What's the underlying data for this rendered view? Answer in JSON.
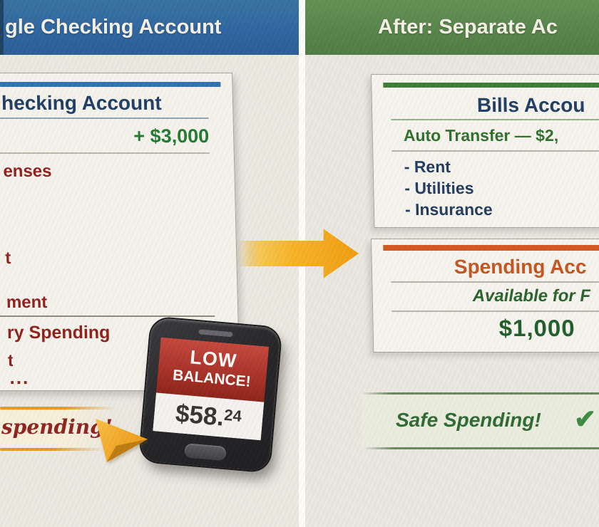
{
  "before": {
    "header": "gle Checking Account",
    "card": {
      "title": "hecking Account",
      "deposit": "+ $3,000",
      "rows": [
        "enses",
        "t",
        "ment",
        "ry Spending",
        "t",
        "..."
      ]
    },
    "banner": {
      "text": "spending!"
    },
    "phone": {
      "alert_line1": "LOW",
      "alert_line2": "BALANCE!",
      "balance_main": "$58.",
      "balance_cents": "24"
    }
  },
  "after": {
    "header": "After: Separate Ac",
    "bills": {
      "title": "Bills Accou",
      "subtitle": "Auto Transfer — $2,",
      "items": [
        "- Rent",
        "- Utilities",
        "- Insurance"
      ]
    },
    "spending": {
      "title": "Spending Acc",
      "subtitle": "Available for F",
      "amount": "$1,000"
    },
    "safe": {
      "text": "Safe Spending!",
      "check_icon": "✔"
    }
  },
  "colors": {
    "header_blue": "#2c64a0",
    "header_green": "#568349",
    "accent_blue": "#2e6fad",
    "accent_green": "#3c7a36",
    "accent_orange": "#d2571f",
    "navy_text": "#1d3c63",
    "green_money": "#1f7a2f",
    "red_text": "#8e1e1a",
    "arrow_orange": "#f1a421",
    "alert_red": "#a52e24",
    "safe_green": "#2c6930"
  }
}
